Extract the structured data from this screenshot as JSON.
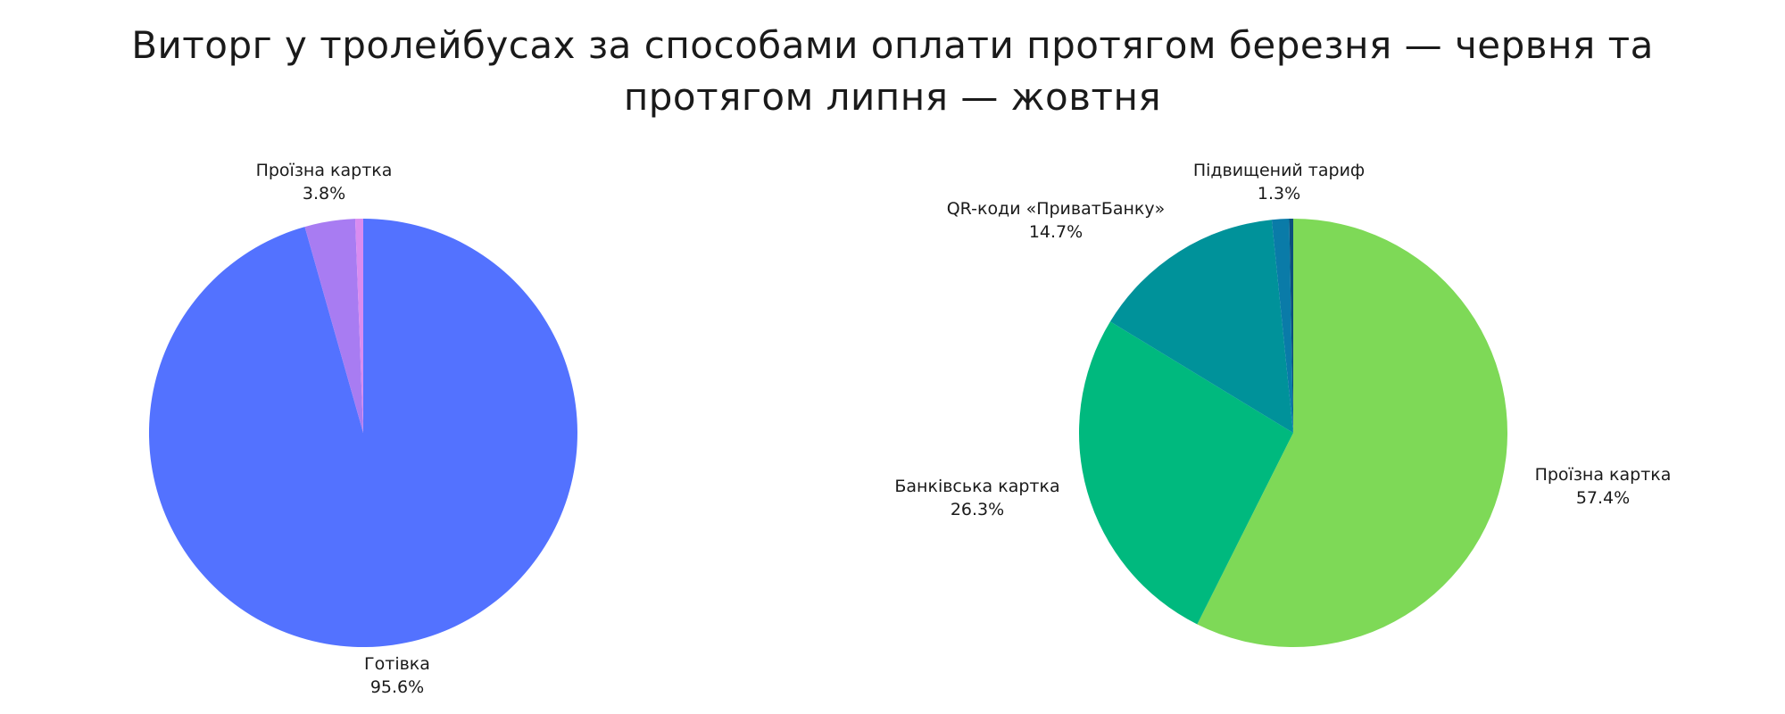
{
  "title_line1": "Виторг у тролейбусах за способами оплати протягом березня — червня та",
  "title_line2": "протягом липня — жовтня",
  "chart_data": [
    {
      "type": "pie",
      "slices": [
        {
          "label": "Готівка",
          "value": 95.6,
          "percent_label": "95.6%",
          "color": "#5372ff"
        },
        {
          "label": "Проїзна картка",
          "value": 3.8,
          "percent_label": "3.8%",
          "color": "#a87cf2"
        },
        {
          "label": "",
          "value": 0.6,
          "percent_label": "",
          "color": "#d98cf0"
        }
      ]
    },
    {
      "type": "pie",
      "slices": [
        {
          "label": "Проїзна картка",
          "value": 57.4,
          "percent_label": "57.4%",
          "color": "#7ed957"
        },
        {
          "label": "Банківська картка",
          "value": 26.3,
          "percent_label": "26.3%",
          "color": "#00b97e"
        },
        {
          "label": "QR-коди «ПриватБанку»",
          "value": 14.7,
          "percent_label": "14.7%",
          "color": "#00929a"
        },
        {
          "label": "Підвищений тариф",
          "value": 1.3,
          "percent_label": "1.3%",
          "color": "#0a7ba8"
        },
        {
          "label": "",
          "value": 0.3,
          "percent_label": "",
          "color": "#0b4f7c"
        }
      ]
    }
  ]
}
